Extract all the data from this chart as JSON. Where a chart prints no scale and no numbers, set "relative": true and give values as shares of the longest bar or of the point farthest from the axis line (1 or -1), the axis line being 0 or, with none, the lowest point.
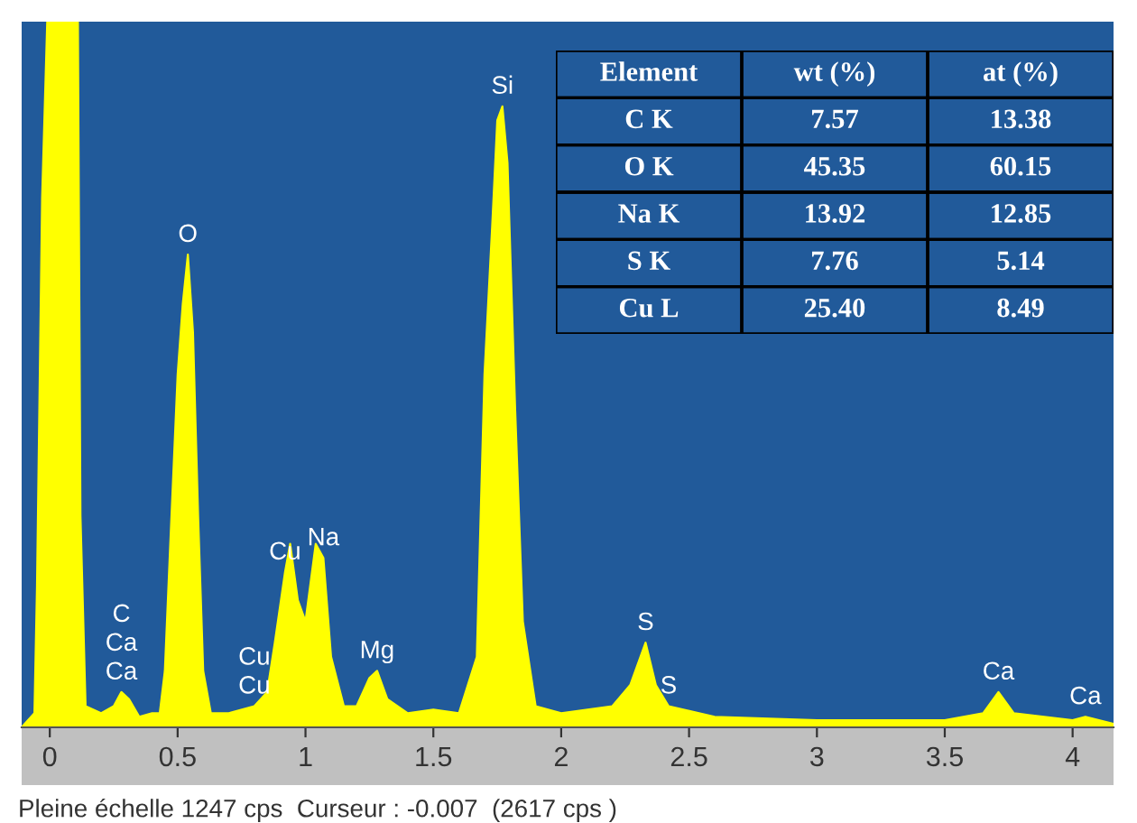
{
  "chart_data": [
    {
      "type": "area",
      "relative": true,
      "color": "#ffff00",
      "x": [
        -0.11,
        -0.06,
        -0.05,
        -0.03,
        -0.01,
        0.11,
        0.12,
        0.14,
        0.2,
        0.25,
        0.28,
        0.31,
        0.35,
        0.4,
        0.43,
        0.45,
        0.47,
        0.5,
        0.52,
        0.54,
        0.56,
        0.58,
        0.6,
        0.63,
        0.7,
        0.8,
        0.85,
        0.88,
        0.92,
        0.94,
        0.97,
        1.0,
        1.04,
        1.07,
        1.1,
        1.15,
        1.2,
        1.25,
        1.28,
        1.32,
        1.4,
        1.5,
        1.6,
        1.67,
        1.7,
        1.73,
        1.75,
        1.77,
        1.79,
        1.82,
        1.85,
        1.9,
        2.0,
        2.2,
        2.27,
        2.33,
        2.37,
        2.42,
        2.6,
        3.0,
        3.5,
        3.65,
        3.71,
        3.77,
        4.0,
        4.05,
        4.16
      ],
      "values": [
        0.0,
        0.02,
        0.2,
        0.75,
        1,
        1,
        0.3,
        0.03,
        0.02,
        0.03,
        0.05,
        0.04,
        0.015,
        0.02,
        0.02,
        0.08,
        0.25,
        0.5,
        0.6,
        0.67,
        0.56,
        0.3,
        0.08,
        0.02,
        0.02,
        0.03,
        0.05,
        0.12,
        0.22,
        0.26,
        0.18,
        0.15,
        0.26,
        0.24,
        0.1,
        0.03,
        0.03,
        0.07,
        0.08,
        0.04,
        0.02,
        0.025,
        0.02,
        0.1,
        0.5,
        0.71,
        0.86,
        0.88,
        0.8,
        0.45,
        0.15,
        0.03,
        0.02,
        0.03,
        0.06,
        0.12,
        0.06,
        0.03,
        0.015,
        0.01,
        0.01,
        0.02,
        0.05,
        0.02,
        0.01,
        0.015,
        0.005
      ],
      "xlim": [
        -0.11,
        4.16
      ],
      "xticks": [
        0,
        0.5,
        1,
        1.5,
        2,
        2.5,
        3,
        3.5,
        4
      ],
      "annotations": [
        {
          "text": "O",
          "x": 0.54,
          "y": 0.67
        },
        {
          "text": "Si",
          "x": 1.77,
          "y": 0.88
        },
        {
          "text": "C\nCa\nCa",
          "x": 0.28,
          "y": 0.05
        },
        {
          "text": "Cu\nCu",
          "x": 0.8,
          "y": 0.03
        },
        {
          "text": "Cu",
          "x": 0.92,
          "y": 0.22
        },
        {
          "text": "Na",
          "x": 1.07,
          "y": 0.24
        },
        {
          "text": "Mg",
          "x": 1.28,
          "y": 0.08
        },
        {
          "text": "S",
          "x": 2.33,
          "y": 0.12
        },
        {
          "text": "S",
          "x": 2.42,
          "y": 0.03
        },
        {
          "text": "Ca",
          "x": 3.71,
          "y": 0.05
        },
        {
          "text": "Ca",
          "x": 4.05,
          "y": 0.015
        },
        "Pleine échelle 1247 cps  Curseur : -0.007  (2617 cps )"
      ]
    },
    {
      "type": "other",
      "legend_title": "Element",
      "data_labels": true,
      "categories": [
        "C K",
        "O K",
        "Na K",
        "S K",
        "Cu L"
      ],
      "series": [
        {
          "name": "wt (%)",
          "values": [
            7.57,
            45.35,
            13.92,
            7.76,
            25.4
          ],
          "value_labels": [
            "7.57",
            "45.35",
            "13.92",
            "7.76",
            "25.40"
          ]
        },
        {
          "name": "at (%)",
          "values": [
            13.38,
            60.15,
            12.85,
            5.14,
            8.49
          ]
        }
      ]
    }
  ]
}
